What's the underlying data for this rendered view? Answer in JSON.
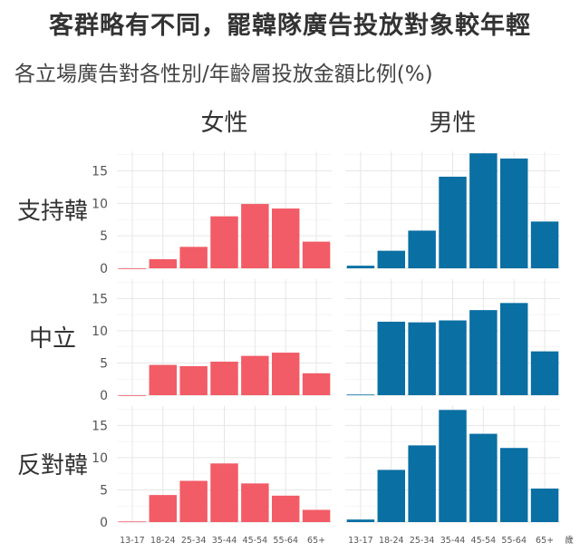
{
  "title": "客群略有不同，罷韓隊廣告投放對象較年輕",
  "subtitle": "各立場廣告對各性別/年齡層投放金額比例(%)",
  "chart_data": {
    "type": "bar",
    "categories": [
      "13-17",
      "18-24",
      "25-34",
      "35-44",
      "45-54",
      "55-64",
      "65+"
    ],
    "x_unit": "歲",
    "columns": [
      "女性",
      "男性"
    ],
    "rows": [
      "支持韓",
      "中立",
      "反對韓"
    ],
    "ylim": [
      0,
      18
    ],
    "yticks": [
      0,
      5,
      10,
      15
    ],
    "grid": true,
    "colors": {
      "女性": "#f25c66",
      "男性": "#0a6fa3"
    },
    "panels": [
      {
        "row": "支持韓",
        "column": "女性",
        "values": [
          0.0,
          1.4,
          3.3,
          8.0,
          9.9,
          9.2,
          4.1
        ]
      },
      {
        "row": "支持韓",
        "column": "男性",
        "values": [
          0.4,
          2.7,
          5.8,
          14.1,
          17.7,
          16.9,
          7.2
        ]
      },
      {
        "row": "中立",
        "column": "女性",
        "values": [
          0.0,
          4.7,
          4.5,
          5.2,
          6.1,
          6.6,
          3.4
        ]
      },
      {
        "row": "中立",
        "column": "男性",
        "values": [
          0.1,
          11.4,
          11.3,
          11.6,
          13.2,
          14.3,
          6.8
        ]
      },
      {
        "row": "反對韓",
        "column": "女性",
        "values": [
          0.1,
          4.2,
          6.4,
          9.1,
          6.0,
          4.1,
          1.9
        ]
      },
      {
        "row": "反對韓",
        "column": "男性",
        "values": [
          0.4,
          8.1,
          11.9,
          17.4,
          13.7,
          11.5,
          5.2
        ]
      }
    ]
  }
}
